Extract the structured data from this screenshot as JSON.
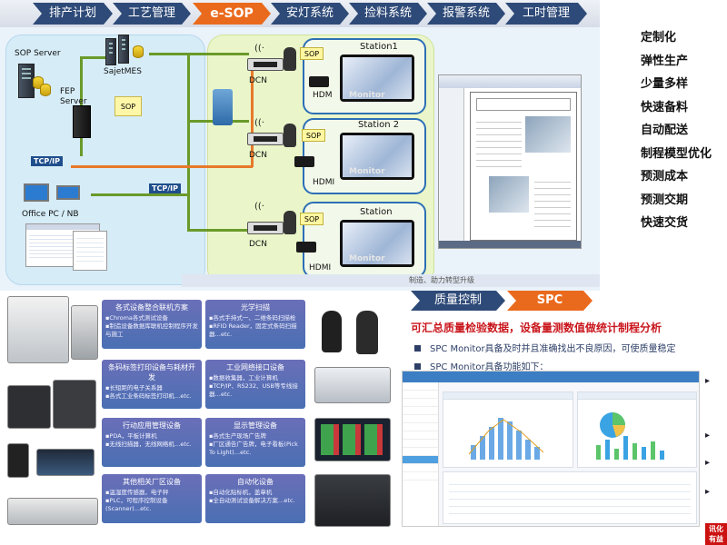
{
  "top_nav": {
    "items": [
      {
        "label": "排产计划",
        "active": false
      },
      {
        "label": "工艺管理",
        "active": false
      },
      {
        "label": "e-SOP",
        "active": true
      },
      {
        "label": "安灯系统",
        "active": false
      },
      {
        "label": "捡料系统",
        "active": false
      },
      {
        "label": "报警系统",
        "active": false
      },
      {
        "label": "工时管理",
        "active": false
      }
    ]
  },
  "diagram": {
    "sop_server": "SOP Server",
    "sajet_mes": "SajetMES",
    "fep_server": "FEP\nServer",
    "sop_paper": "SOP",
    "tcpip_left": "TCP/IP",
    "tcpip_right": "TCP/IP",
    "office_pc": "Office PC / NB",
    "dcn": "DCN",
    "hdm": "HDMI",
    "hdm_short": "HDM",
    "sop_box": "SOP",
    "monitor_label": "Monitor",
    "stations": [
      "Station1",
      "Station 2",
      "Station"
    ],
    "bottom_strip": "制造、助力转型升级"
  },
  "features": [
    "定制化",
    "弹性生产",
    "少量多样",
    "快速备料",
    "自动配送",
    "制程模型优化",
    "预测成本",
    "预测交期",
    "快速交货"
  ],
  "hardware": [
    {
      "title": "各式设备整合联机方案",
      "desc": "▪Chroma各式测试设备\n▪制造设备数据库联机控制程序开发与施工"
    },
    {
      "title": "光学扫描",
      "desc": "▪各式手持式一、二维条码扫描枪\n▪RFID Reader，固定式条码扫描器…etc."
    },
    {
      "title": "条码标签打印设备与耗材开发",
      "desc": "▪长短距的电子关系器\n▪各式工业条码标签打印机…etc."
    },
    {
      "title": "工业网络接口设备",
      "desc": "▪数据收集器，工业计算机\n▪TCP/IP、RS232、USB等专线接器…etc."
    },
    {
      "title": "行动应用管理设备",
      "desc": "▪PDA，平板计算机\n▪无线扫描器，无线网络机…etc."
    },
    {
      "title": "显示管理设备",
      "desc": "▪各式生产现场广告牌\n▪厂区通告广告牌，电子看板(Pick To Light)…etc."
    },
    {
      "title": "其他相关厂区设备",
      "desc": "▪温湿度传感器，电子秤\n▪PLC，可程序控制设备(Scanner)…etc."
    },
    {
      "title": "自动化设备",
      "desc": "▪自动化贴标机，盖章机\n▪全自动测试设备解决方案…etc."
    }
  ],
  "spc": {
    "nav": [
      {
        "label": "质量控制",
        "active": false
      },
      {
        "label": "SPC",
        "active": true
      }
    ],
    "headline": "可汇总质量检验数据，设备量测数值做统计制程分析",
    "bullets": [
      "SPC Monitor具备及时并且准确找出不良原因，可使质量稳定",
      "SPC Monitor具备功能如下："
    ],
    "right_edge": [
      "▸",
      "▸",
      "▸",
      "▸"
    ],
    "corner_logo": "讯化\n有益"
  },
  "colors": {
    "nav_blue": "#2e4a78",
    "nav_orange": "#ea6a1d",
    "headline_red": "#c9161c",
    "hw_card": "#5a6fb5"
  }
}
